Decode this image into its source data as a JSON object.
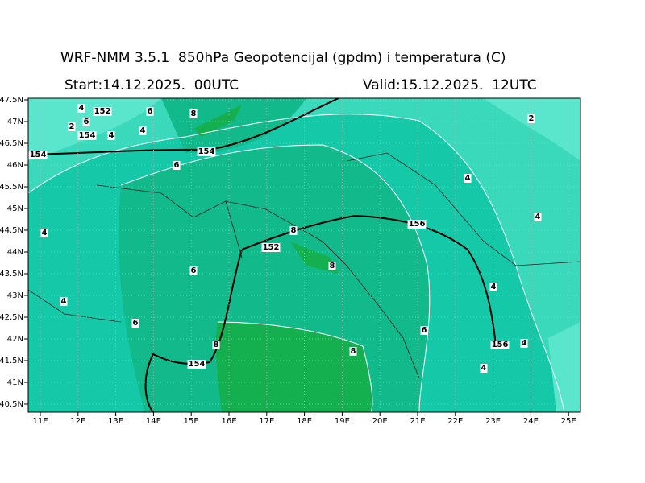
{
  "header": {
    "title": "WRF-NMM 3.5.1  850hPa Geopotencijal (gpdm) i temperatura (C)",
    "start": "Start:14.12.2025.  00UTC",
    "valid": "Valid:15.12.2025.  12UTC"
  },
  "map": {
    "lat_labels": [
      "47.5N",
      "47N",
      "46.5N",
      "46N",
      "45.5N",
      "45N",
      "44.5N",
      "44N",
      "43.5N",
      "43N",
      "42.5N",
      "42N",
      "41.5N",
      "41N",
      "40.5N"
    ],
    "lon_labels": [
      "11E",
      "12E",
      "13E",
      "14E",
      "15E",
      "16E",
      "17E",
      "18E",
      "19E",
      "20E",
      "21E",
      "22E",
      "23E",
      "24E",
      "25E"
    ],
    "contour_labels": [
      "4",
      "152",
      "6",
      "8",
      "2",
      "6",
      "154",
      "4",
      "4",
      "154",
      "154",
      "6",
      "2",
      "4",
      "4",
      "4",
      "8",
      "156",
      "152",
      "8",
      "6",
      "4",
      "4",
      "6",
      "6",
      "8",
      "156",
      "4",
      "8",
      "154",
      "4"
    ]
  }
}
